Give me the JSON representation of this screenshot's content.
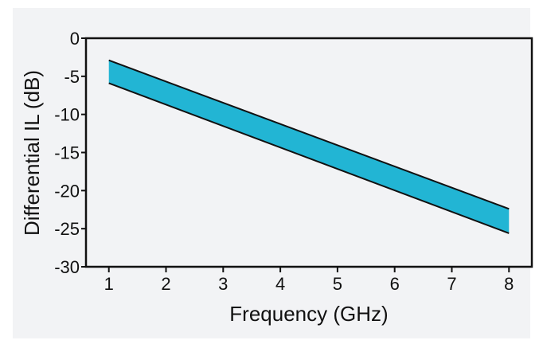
{
  "chart_data": {
    "type": "area",
    "title": "",
    "xlabel": "Frequency (GHz)",
    "ylabel": "Differential IL (dB)",
    "xlim": [
      0.6,
      8.4
    ],
    "ylim": [
      -30,
      0
    ],
    "x_ticks": [
      1,
      2,
      3,
      4,
      5,
      6,
      7,
      8
    ],
    "y_ticks": [
      0,
      -5,
      -10,
      -15,
      -20,
      -25,
      -30
    ],
    "grid": false,
    "legend": "none",
    "fill_color": "#22b5d4",
    "line_color": "#111111",
    "x": [
      1,
      8
    ],
    "upper": [
      -2.9,
      -22.4
    ],
    "lower": [
      -5.9,
      -25.6
    ]
  }
}
